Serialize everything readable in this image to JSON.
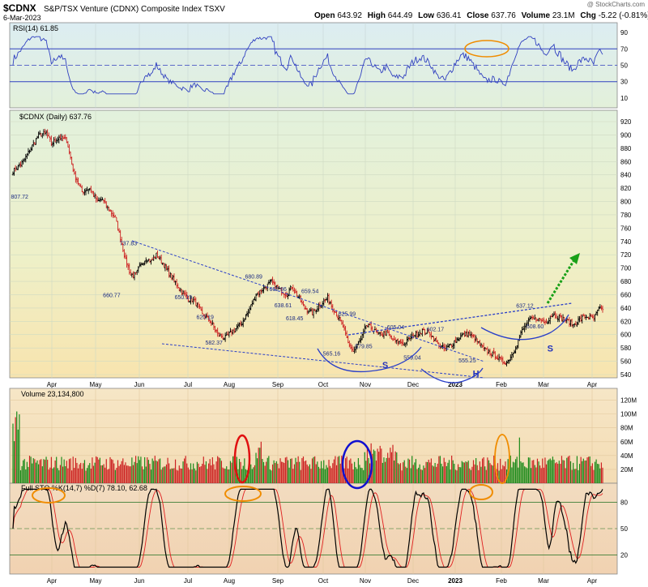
{
  "header": {
    "symbol": "$CDNX",
    "name": "S&P/TSX Venture (CDNX) Composite Index",
    "exchange": "TSXV",
    "date": "6-Mar-2023",
    "watermark": "@ StockCharts.com",
    "open_label": "Open",
    "open": "643.92",
    "high_label": "High",
    "high": "644.49",
    "low_label": "Low",
    "low": "636.41",
    "close_label": "Close",
    "close": "637.76",
    "volume_label": "Volume",
    "volume": "23.1M",
    "change_label": "Chg",
    "change": "-5.22 (-0.81%)"
  },
  "colors": {
    "up": "#1a8a1a",
    "down": "#cc2222",
    "price": "#000000",
    "rsi": "#3040c0",
    "sto_k": "#000000",
    "sto_d": "#e02020",
    "trend": "#2a3fc8",
    "arrow": "#18a018",
    "circle_orange": "#f08c00",
    "circle_red": "#e01010",
    "circle_blue": "#1010d0"
  },
  "chart_data": {
    "type": "stock",
    "x_axis_labels": [
      "Apr",
      "May",
      "Jun",
      "Jul",
      "Aug",
      "Sep",
      "Oct",
      "Nov",
      "Dec",
      "2023",
      "Feb",
      "Mar",
      "Apr"
    ],
    "price": {
      "label": "$CDNX (Daily) 637.76",
      "ylim": [
        540,
        920
      ],
      "ticks": [
        540,
        560,
        580,
        600,
        620,
        640,
        660,
        680,
        700,
        720,
        740,
        760,
        780,
        800,
        820,
        840,
        860,
        880,
        900,
        920
      ],
      "anchors": [
        [
          0,
          845
        ],
        [
          8,
          860
        ],
        [
          14,
          880
        ],
        [
          20,
          900
        ],
        [
          26,
          903
        ],
        [
          30,
          887
        ],
        [
          36,
          897
        ],
        [
          42,
          892
        ],
        [
          48,
          840
        ],
        [
          54,
          815
        ],
        [
          60,
          820
        ],
        [
          66,
          800
        ],
        [
          70,
          803
        ],
        [
          74,
          790
        ],
        [
          80,
          775
        ],
        [
          84,
          745
        ],
        [
          88,
          712
        ],
        [
          92,
          690
        ],
        [
          96,
          690
        ],
        [
          100,
          705
        ],
        [
          104,
          715
        ],
        [
          108,
          710
        ],
        [
          112,
          720
        ],
        [
          118,
          705
        ],
        [
          124,
          686
        ],
        [
          130,
          670
        ],
        [
          136,
          655
        ],
        [
          142,
          650
        ],
        [
          148,
          630
        ],
        [
          154,
          622
        ],
        [
          160,
          600
        ],
        [
          166,
          595
        ],
        [
          172,
          606
        ],
        [
          178,
          615
        ],
        [
          184,
          635
        ],
        [
          190,
          660
        ],
        [
          196,
          670
        ],
        [
          202,
          679
        ],
        [
          208,
          668
        ],
        [
          214,
          660
        ],
        [
          218,
          672
        ],
        [
          222,
          660
        ],
        [
          228,
          640
        ],
        [
          234,
          632
        ],
        [
          240,
          645
        ],
        [
          246,
          655
        ],
        [
          252,
          634
        ],
        [
          258,
          612
        ],
        [
          262,
          587
        ],
        [
          266,
          575
        ],
        [
          272,
          592
        ],
        [
          276,
          614
        ],
        [
          280,
          610
        ],
        [
          286,
          600
        ],
        [
          292,
          603
        ],
        [
          298,
          590
        ],
        [
          306,
          587
        ],
        [
          314,
          600
        ],
        [
          320,
          606
        ],
        [
          326,
          602
        ],
        [
          332,
          586
        ],
        [
          338,
          578
        ],
        [
          344,
          588
        ],
        [
          350,
          598
        ],
        [
          356,
          601
        ],
        [
          362,
          592
        ],
        [
          368,
          578
        ],
        [
          374,
          572
        ],
        [
          378,
          567
        ],
        [
          382,
          560
        ],
        [
          386,
          558
        ],
        [
          390,
          570
        ],
        [
          394,
          586
        ],
        [
          398,
          606
        ],
        [
          404,
          622
        ],
        [
          410,
          624
        ],
        [
          416,
          618
        ],
        [
          422,
          630
        ],
        [
          428,
          626
        ],
        [
          434,
          620
        ],
        [
          438,
          614
        ],
        [
          442,
          622
        ],
        [
          448,
          628
        ],
        [
          454,
          624
        ],
        [
          458,
          638
        ],
        [
          461,
          637.76
        ]
      ],
      "annotations": [
        {
          "text": "807.72",
          "x": 6,
          "y": 808
        },
        {
          "text": "737.83",
          "x": 91,
          "y": 738
        },
        {
          "text": "660.77",
          "x": 78,
          "y": 660
        },
        {
          "text": "650.19",
          "x": 134,
          "y": 657
        },
        {
          "text": "620.19",
          "x": 151,
          "y": 627
        },
        {
          "text": "582.37",
          "x": 158,
          "y": 589
        },
        {
          "text": "680.89",
          "x": 189,
          "y": 688
        },
        {
          "text": "662.86",
          "x": 208,
          "y": 669
        },
        {
          "text": "659.54",
          "x": 233,
          "y": 666
        },
        {
          "text": "638.61",
          "x": 212,
          "y": 645
        },
        {
          "text": "618.45",
          "x": 221,
          "y": 625
        },
        {
          "text": "625.99",
          "x": 262,
          "y": 632
        },
        {
          "text": "565.16",
          "x": 250,
          "y": 572
        },
        {
          "text": "579.85",
          "x": 275,
          "y": 583
        },
        {
          "text": "605.04",
          "x": 300,
          "y": 612
        },
        {
          "text": "559.04",
          "x": 313,
          "y": 566
        },
        {
          "text": "602.17",
          "x": 331,
          "y": 609
        },
        {
          "text": "555.25",
          "x": 356,
          "y": 562
        },
        {
          "text": "637.12",
          "x": 401,
          "y": 644
        },
        {
          "text": "608.60",
          "x": 409,
          "y": 613
        }
      ],
      "pattern_labels": [
        {
          "text": "S",
          "x": 291,
          "y": 550
        },
        {
          "text": "H",
          "x": 362,
          "y": 537
        },
        {
          "text": "S",
          "x": 420,
          "y": 575
        }
      ]
    },
    "rsi": {
      "label": "RSI(14) 61.85",
      "ylim": [
        0,
        100
      ],
      "ticks": [
        10,
        30,
        50,
        70,
        90
      ],
      "overbought": 70,
      "oversold": 30
    },
    "volume": {
      "label": "Volume 23,134,800",
      "unit": "M",
      "ylim": [
        0,
        130
      ],
      "ticks_labels": [
        "20M",
        "40M",
        "60M",
        "80M",
        "100M",
        "120M"
      ]
    },
    "stochastic": {
      "label": "Full STO %K(14,7) %D(7) 78.10, 62.68",
      "label_k": "78.10",
      "label_d": "62.68",
      "ylim": [
        0,
        100
      ],
      "ticks": [
        20,
        50,
        80
      ]
    }
  }
}
